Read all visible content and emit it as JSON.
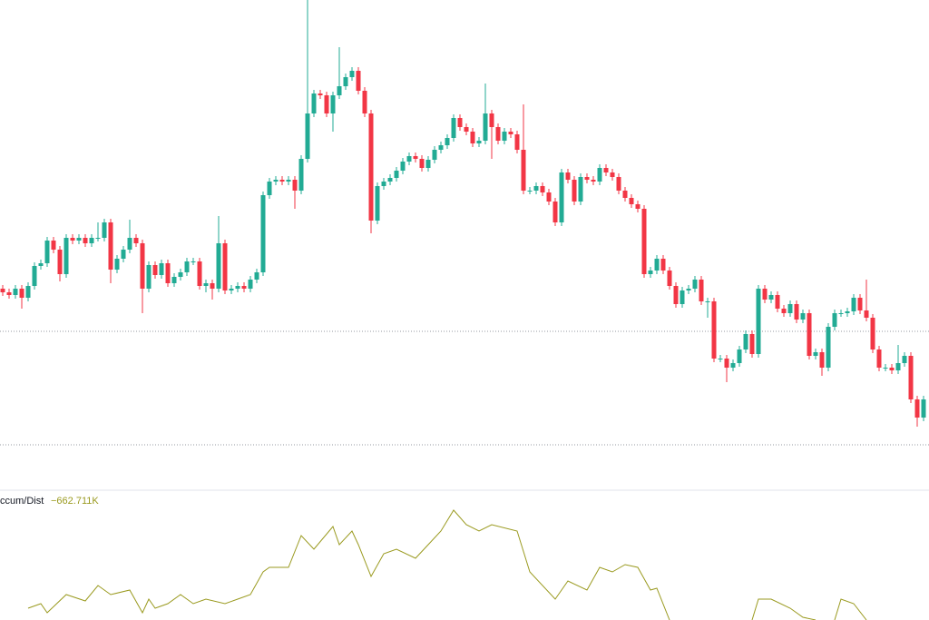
{
  "chart_data": [
    {
      "type": "candlestick",
      "up_color": "#22ab94",
      "down_color": "#f23645",
      "ylim": [
        0,
        540
      ],
      "price_lines": [
        175,
        50
      ],
      "open": [
        222,
        218,
        215,
        222,
        212,
        225,
        247,
        250,
        275,
        265,
        238,
        278,
        275,
        278,
        272,
        278,
        278,
        295,
        243,
        255,
        265,
        278,
        272,
        222,
        248,
        237,
        250,
        228,
        235,
        240,
        252,
        252,
        225,
        228,
        222,
        272,
        220,
        222,
        225,
        222,
        232,
        240,
        325,
        340,
        342,
        340,
        342,
        330,
        365,
        415,
        437,
        435,
        415,
        435,
        445,
        455,
        462,
        440,
        415,
        297,
        335,
        340,
        344,
        352,
        362,
        368,
        365,
        355,
        364,
        375,
        380,
        388,
        410,
        400,
        395,
        382,
        385,
        415,
        400,
        385,
        395,
        392,
        375,
        330,
        330,
        335,
        328,
        318,
        295,
        350,
        342,
        318,
        345,
        342,
        340,
        355,
        350,
        345,
        330,
        322,
        315,
        310,
        238,
        242,
        255,
        242,
        225,
        205,
        220,
        222,
        232,
        208,
        208,
        145,
        145,
        135,
        140,
        155,
        172,
        150,
        222,
        210,
        215,
        200,
        195,
        205,
        188,
        195,
        148,
        152,
        135,
        180,
        195,
        195,
        197,
        212,
        198,
        190,
        155,
        135,
        135,
        132,
        140,
        148,
        100,
        80
      ],
      "high": [
        226,
        222,
        226,
        226,
        229,
        251,
        254,
        279,
        279,
        269,
        282,
        282,
        282,
        282,
        282,
        295,
        299,
        299,
        259,
        269,
        298,
        282,
        276,
        252,
        252,
        254,
        254,
        239,
        244,
        256,
        256,
        256,
        232,
        232,
        302,
        276,
        226,
        229,
        229,
        236,
        244,
        329,
        344,
        346,
        346,
        346,
        346,
        369,
        540,
        441,
        441,
        439,
        439,
        488,
        459,
        466,
        466,
        444,
        419,
        339,
        344,
        348,
        356,
        366,
        372,
        372,
        369,
        368,
        379,
        384,
        392,
        414,
        414,
        404,
        399,
        389,
        448,
        419,
        404,
        399,
        399,
        396,
        425,
        334,
        339,
        339,
        332,
        322,
        354,
        354,
        346,
        349,
        349,
        346,
        359,
        359,
        354,
        349,
        334,
        326,
        319,
        314,
        246,
        259,
        259,
        246,
        229,
        224,
        226,
        236,
        236,
        212,
        212,
        149,
        149,
        144,
        159,
        176,
        176,
        226,
        226,
        219,
        219,
        204,
        209,
        209,
        199,
        199,
        156,
        156,
        184,
        199,
        199,
        201,
        216,
        216,
        232,
        194,
        159,
        139,
        139,
        160,
        152,
        152,
        104,
        104
      ],
      "low": [
        214,
        211,
        211,
        200,
        208,
        221,
        243,
        246,
        261,
        230,
        234,
        271,
        271,
        268,
        268,
        274,
        274,
        228,
        239,
        251,
        261,
        268,
        195,
        218,
        233,
        233,
        224,
        224,
        231,
        236,
        248,
        221,
        218,
        210,
        218,
        216,
        216,
        218,
        218,
        218,
        228,
        236,
        321,
        336,
        336,
        336,
        310,
        326,
        361,
        411,
        431,
        411,
        395,
        431,
        441,
        451,
        436,
        411,
        283,
        293,
        331,
        336,
        340,
        348,
        358,
        361,
        351,
        351,
        360,
        371,
        376,
        384,
        396,
        391,
        378,
        378,
        381,
        365,
        381,
        381,
        388,
        371,
        326,
        326,
        326,
        324,
        314,
        291,
        291,
        338,
        314,
        314,
        338,
        336,
        336,
        346,
        341,
        326,
        318,
        311,
        306,
        234,
        234,
        238,
        238,
        221,
        201,
        201,
        216,
        218,
        204,
        190,
        141,
        141,
        119,
        131,
        136,
        151,
        146,
        146,
        206,
        206,
        196,
        191,
        191,
        184,
        184,
        144,
        144,
        126,
        131,
        176,
        191,
        191,
        193,
        194,
        186,
        151,
        131,
        131,
        128,
        128,
        136,
        96,
        70,
        76
      ],
      "close": [
        218,
        215,
        222,
        212,
        225,
        247,
        250,
        275,
        265,
        238,
        278,
        275,
        278,
        272,
        278,
        278,
        295,
        243,
        255,
        265,
        278,
        272,
        222,
        248,
        237,
        250,
        228,
        235,
        240,
        252,
        252,
        225,
        228,
        222,
        272,
        220,
        222,
        225,
        222,
        232,
        240,
        325,
        340,
        342,
        340,
        342,
        330,
        365,
        415,
        437,
        435,
        415,
        435,
        445,
        455,
        462,
        440,
        415,
        297,
        335,
        340,
        344,
        352,
        362,
        368,
        365,
        355,
        364,
        375,
        380,
        388,
        410,
        400,
        395,
        382,
        385,
        415,
        400,
        385,
        395,
        392,
        375,
        330,
        330,
        335,
        328,
        318,
        295,
        350,
        342,
        318,
        345,
        342,
        340,
        355,
        350,
        345,
        330,
        322,
        315,
        310,
        238,
        242,
        255,
        242,
        225,
        205,
        220,
        222,
        232,
        208,
        208,
        145,
        145,
        135,
        140,
        155,
        172,
        150,
        222,
        210,
        215,
        200,
        195,
        205,
        188,
        195,
        148,
        152,
        135,
        180,
        195,
        195,
        197,
        212,
        198,
        190,
        155,
        135,
        135,
        132,
        140,
        148,
        100,
        80,
        100
      ]
    },
    {
      "type": "line",
      "name": "ccum/Dist",
      "value_label": "−662.711K",
      "color": "#9a9a1f",
      "ylim": [
        0,
        143
      ],
      "x": [
        4,
        6,
        7,
        10,
        13,
        15,
        17,
        20,
        22,
        23,
        24,
        26,
        28,
        30,
        32,
        35,
        37,
        39,
        41,
        42,
        45,
        47,
        49,
        52,
        53,
        55,
        56,
        58,
        60,
        62,
        65,
        67,
        69,
        71,
        73,
        75,
        77,
        81,
        83,
        87,
        89,
        92,
        94,
        96,
        98,
        100,
        102,
        103,
        105,
        110,
        118,
        119,
        121,
        124,
        126,
        128,
        129,
        131,
        132,
        134,
        136
      ],
      "values": [
        13,
        18,
        8,
        28,
        21,
        38,
        28,
        33,
        8,
        23,
        13,
        18,
        28,
        18,
        23,
        18,
        23,
        28,
        53,
        58,
        58,
        93,
        78,
        103,
        83,
        98,
        83,
        48,
        73,
        78,
        68,
        83,
        98,
        121,
        105,
        98,
        105,
        98,
        53,
        23,
        43,
        33,
        58,
        53,
        61,
        58,
        33,
        35,
        0,
        null,
        0,
        23,
        23,
        13,
        3,
        0,
        null,
        0,
        23,
        18,
        0
      ]
    }
  ]
}
